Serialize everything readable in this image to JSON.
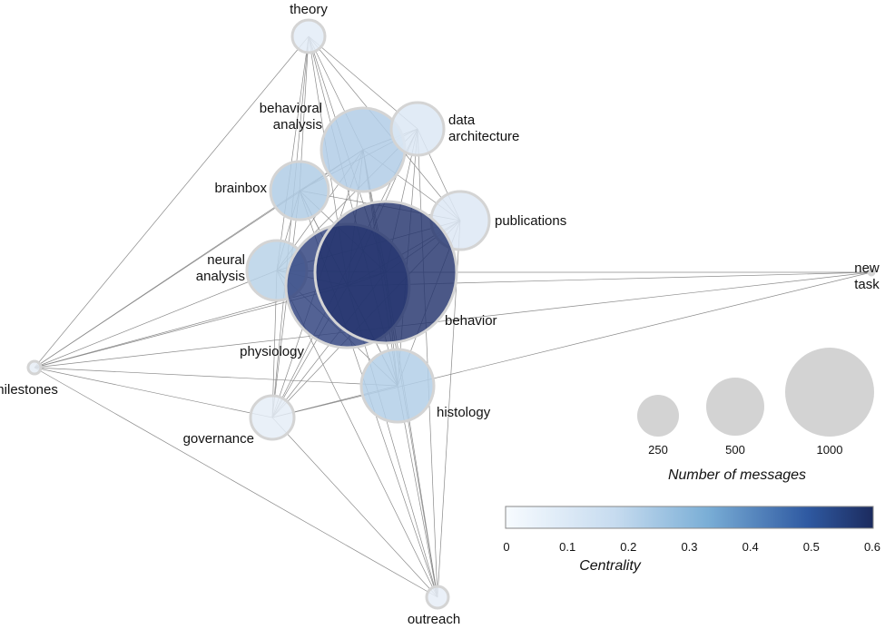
{
  "nodes": [
    {
      "id": "th",
      "label": [
        "theory"
      ],
      "messages": 130,
      "centrality": 0.04
    },
    {
      "id": "ba",
      "label": [
        "behavioral",
        "analysis"
      ],
      "messages": 880,
      "centrality": 0.22
    },
    {
      "id": "da",
      "label": [
        "data",
        "architecture"
      ],
      "messages": 350,
      "centrality": 0.09
    },
    {
      "id": "bb",
      "label": [
        "brainbox"
      ],
      "messages": 430,
      "centrality": 0.22
    },
    {
      "id": "pu",
      "label": [
        "publications"
      ],
      "messages": 430,
      "centrality": 0.09
    },
    {
      "id": "na",
      "label": [
        "neural",
        "analysis"
      ],
      "messages": 450,
      "centrality": 0.2
    },
    {
      "id": "ph",
      "label": [
        "physiology"
      ],
      "messages": 1900,
      "centrality": 0.55
    },
    {
      "id": "be",
      "label": [
        "behavior"
      ],
      "messages": 2500,
      "centrality": 0.6
    },
    {
      "id": "nt",
      "label": [
        "new",
        "task"
      ],
      "messages": 5,
      "centrality": 0.0
    },
    {
      "id": "mi",
      "label": [
        "milestones"
      ],
      "messages": 20,
      "centrality": 0.03
    },
    {
      "id": "hi",
      "label": [
        "histology"
      ],
      "messages": 660,
      "centrality": 0.22
    },
    {
      "id": "go",
      "label": [
        "governance"
      ],
      "messages": 240,
      "centrality": 0.04
    },
    {
      "id": "ou",
      "label": [
        "outreach"
      ],
      "messages": 60,
      "centrality": 0.04
    }
  ],
  "edges": [
    [
      "th",
      "ba"
    ],
    [
      "th",
      "da"
    ],
    [
      "th",
      "bb"
    ],
    [
      "th",
      "pu"
    ],
    [
      "th",
      "na"
    ],
    [
      "th",
      "ph"
    ],
    [
      "th",
      "be"
    ],
    [
      "th",
      "mi"
    ],
    [
      "th",
      "hi"
    ],
    [
      "th",
      "go"
    ],
    [
      "ba",
      "da"
    ],
    [
      "ba",
      "bb"
    ],
    [
      "ba",
      "pu"
    ],
    [
      "ba",
      "na"
    ],
    [
      "ba",
      "ph"
    ],
    [
      "ba",
      "be"
    ],
    [
      "ba",
      "mi"
    ],
    [
      "ba",
      "hi"
    ],
    [
      "ba",
      "go"
    ],
    [
      "ba",
      "ou"
    ],
    [
      "da",
      "bb"
    ],
    [
      "da",
      "pu"
    ],
    [
      "da",
      "na"
    ],
    [
      "da",
      "ph"
    ],
    [
      "da",
      "be"
    ],
    [
      "da",
      "hi"
    ],
    [
      "da",
      "go"
    ],
    [
      "da",
      "ou"
    ],
    [
      "bb",
      "pu"
    ],
    [
      "bb",
      "na"
    ],
    [
      "bb",
      "ph"
    ],
    [
      "bb",
      "be"
    ],
    [
      "bb",
      "mi"
    ],
    [
      "bb",
      "hi"
    ],
    [
      "bb",
      "go"
    ],
    [
      "bb",
      "ou"
    ],
    [
      "pu",
      "na"
    ],
    [
      "pu",
      "ph"
    ],
    [
      "pu",
      "be"
    ],
    [
      "pu",
      "hi"
    ],
    [
      "pu",
      "go"
    ],
    [
      "pu",
      "ou"
    ],
    [
      "na",
      "ph"
    ],
    [
      "na",
      "be"
    ],
    [
      "na",
      "mi"
    ],
    [
      "na",
      "hi"
    ],
    [
      "na",
      "go"
    ],
    [
      "na",
      "ou"
    ],
    [
      "ph",
      "be"
    ],
    [
      "ph",
      "nt"
    ],
    [
      "ph",
      "mi"
    ],
    [
      "ph",
      "hi"
    ],
    [
      "ph",
      "go"
    ],
    [
      "ph",
      "ou"
    ],
    [
      "be",
      "nt"
    ],
    [
      "be",
      "mi"
    ],
    [
      "be",
      "hi"
    ],
    [
      "be",
      "go"
    ],
    [
      "be",
      "ou"
    ],
    [
      "nt",
      "go"
    ],
    [
      "nt",
      "mi"
    ],
    [
      "mi",
      "hi"
    ],
    [
      "mi",
      "go"
    ],
    [
      "mi",
      "ou"
    ],
    [
      "hi",
      "go"
    ],
    [
      "hi",
      "ou"
    ],
    [
      "go",
      "ou"
    ]
  ],
  "size_legend": {
    "title": "Number of messages",
    "values": [
      "250",
      "500",
      "1000"
    ]
  },
  "color_legend": {
    "title": "Centrality",
    "ticks": [
      "0",
      "0.1",
      "0.2",
      "0.3",
      "0.4",
      "0.5",
      "0.6"
    ],
    "colors": [
      "#f7fbff",
      "#c6dbef",
      "#6baed6",
      "#2a5aa0",
      "#1c2b5e"
    ]
  }
}
